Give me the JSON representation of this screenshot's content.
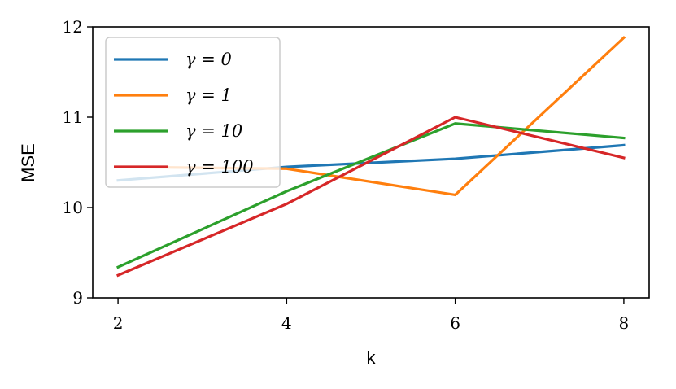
{
  "chart_data": {
    "type": "line",
    "x": [
      2,
      4,
      6,
      8
    ],
    "xticks": [
      "2",
      "4",
      "6",
      "8"
    ],
    "yticks": [
      "9",
      "10",
      "11",
      "12"
    ],
    "xlim": [
      1.7,
      8.3
    ],
    "ylim": [
      9,
      12
    ],
    "xlabel": "k",
    "ylabel": "MSE",
    "grid": false,
    "legend_position": "top-left",
    "series": [
      {
        "name": "γ = 0",
        "color": "#1f77b4",
        "values": [
          10.3,
          10.45,
          10.54,
          10.69
        ]
      },
      {
        "name": "γ = 1",
        "color": "#ff7f0e",
        "values": [
          10.45,
          10.43,
          10.14,
          11.88
        ]
      },
      {
        "name": "γ = 10",
        "color": "#2ca02c",
        "values": [
          9.34,
          10.18,
          10.93,
          10.77
        ]
      },
      {
        "name": "γ = 100",
        "color": "#d62728",
        "values": [
          9.25,
          10.04,
          11.0,
          10.55
        ]
      }
    ]
  }
}
